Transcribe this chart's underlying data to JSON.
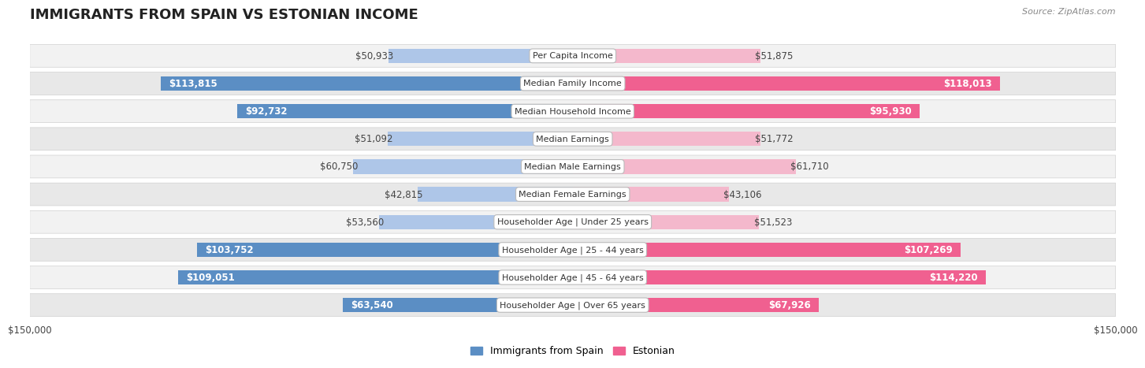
{
  "title": "IMMIGRANTS FROM SPAIN VS ESTONIAN INCOME",
  "source": "Source: ZipAtlas.com",
  "categories": [
    "Per Capita Income",
    "Median Family Income",
    "Median Household Income",
    "Median Earnings",
    "Median Male Earnings",
    "Median Female Earnings",
    "Householder Age | Under 25 years",
    "Householder Age | 25 - 44 years",
    "Householder Age | 45 - 64 years",
    "Householder Age | Over 65 years"
  ],
  "spain_values": [
    50933,
    113815,
    92732,
    51092,
    60750,
    42815,
    53560,
    103752,
    109051,
    63540
  ],
  "estonian_values": [
    51875,
    118013,
    95930,
    51772,
    61710,
    43106,
    51523,
    107269,
    114220,
    67926
  ],
  "spain_labels": [
    "$50,933",
    "$113,815",
    "$92,732",
    "$51,092",
    "$60,750",
    "$42,815",
    "$53,560",
    "$103,752",
    "$109,051",
    "$63,540"
  ],
  "estonian_labels": [
    "$51,875",
    "$118,013",
    "$95,930",
    "$51,772",
    "$61,710",
    "$43,106",
    "$51,523",
    "$107,269",
    "$114,220",
    "$67,926"
  ],
  "max_value": 150000,
  "spain_color_light": "#aec6e8",
  "spain_color_dark": "#5b8ec4",
  "estonian_color_light": "#f4b8cc",
  "estonian_color_dark": "#f06090",
  "background_color": "#ffffff",
  "row_bg_even": "#f0f0f0",
  "row_bg_odd": "#e2e2e2",
  "bar_height": 0.52,
  "title_fontsize": 13,
  "label_fontsize": 8.5,
  "category_fontsize": 8.0,
  "legend_fontsize": 9,
  "source_fontsize": 8,
  "inside_label_threshold": 0.42
}
